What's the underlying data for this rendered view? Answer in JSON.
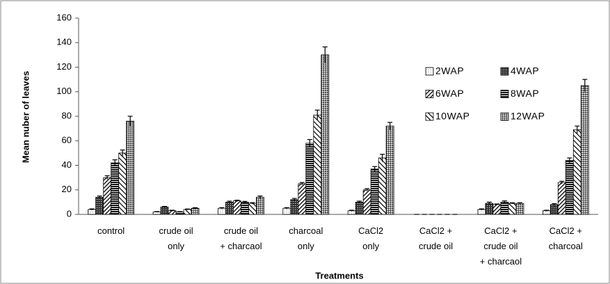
{
  "chart_data": {
    "type": "bar",
    "x_label": "Treatments",
    "y_label": "Mean nuber of leaves",
    "categories": [
      [
        "control"
      ],
      [
        "crude oil",
        "only"
      ],
      [
        "crude oil",
        "+ charcaol"
      ],
      [
        "charcoal",
        "only"
      ],
      [
        "CaCl2",
        "only"
      ],
      [
        "CaCl2 +",
        "crude oil"
      ],
      [
        "CaCl2 +",
        "crude oil",
        "+ charcaol"
      ],
      [
        "CaCl2 +",
        "charcoal"
      ]
    ],
    "series": [
      {
        "name": "2WAP",
        "color": "#000000",
        "pattern": "dots",
        "values": [
          4,
          2,
          5,
          5,
          3,
          0,
          4,
          3
        ],
        "errors": [
          0.5,
          0.3,
          0.5,
          0.5,
          0.4,
          0,
          0.5,
          0.4
        ]
      },
      {
        "name": "4WAP",
        "color": "#000000",
        "pattern": "crosshatch",
        "values": [
          14,
          6,
          10,
          12,
          10,
          0,
          9,
          8
        ],
        "errors": [
          1,
          0.5,
          0.8,
          1,
          0.8,
          0,
          1,
          0.8
        ]
      },
      {
        "name": "6WAP",
        "color": "#000000",
        "pattern": "diagonal-down",
        "values": [
          30,
          3,
          11,
          25,
          20,
          0,
          8,
          26
        ],
        "errors": [
          1.5,
          0.4,
          0.6,
          1,
          1,
          0,
          0.5,
          1
        ]
      },
      {
        "name": "8WAP",
        "color": "#000000",
        "pattern": "horizontal",
        "values": [
          42,
          2,
          10,
          58,
          37,
          0,
          10,
          44
        ],
        "errors": [
          2.5,
          0.3,
          0.6,
          3,
          2,
          0,
          1,
          2
        ]
      },
      {
        "name": "10WAP",
        "color": "#000000",
        "pattern": "diagonal-up",
        "values": [
          50,
          4,
          9,
          81,
          46,
          0,
          9,
          69
        ],
        "errors": [
          2.5,
          0.4,
          0.6,
          4,
          3,
          0,
          0.5,
          3
        ]
      },
      {
        "name": "12WAP",
        "color": "#000000",
        "pattern": "checker",
        "values": [
          76,
          5,
          14,
          130,
          72,
          0,
          9,
          105
        ],
        "errors": [
          4,
          0.5,
          1,
          6.5,
          3,
          0,
          0.5,
          5
        ]
      }
    ],
    "ylim": [
      0,
      160
    ],
    "yticks": [
      0,
      20,
      40,
      60,
      80,
      100,
      120,
      140,
      160
    ],
    "grid": false,
    "legend": "right"
  }
}
